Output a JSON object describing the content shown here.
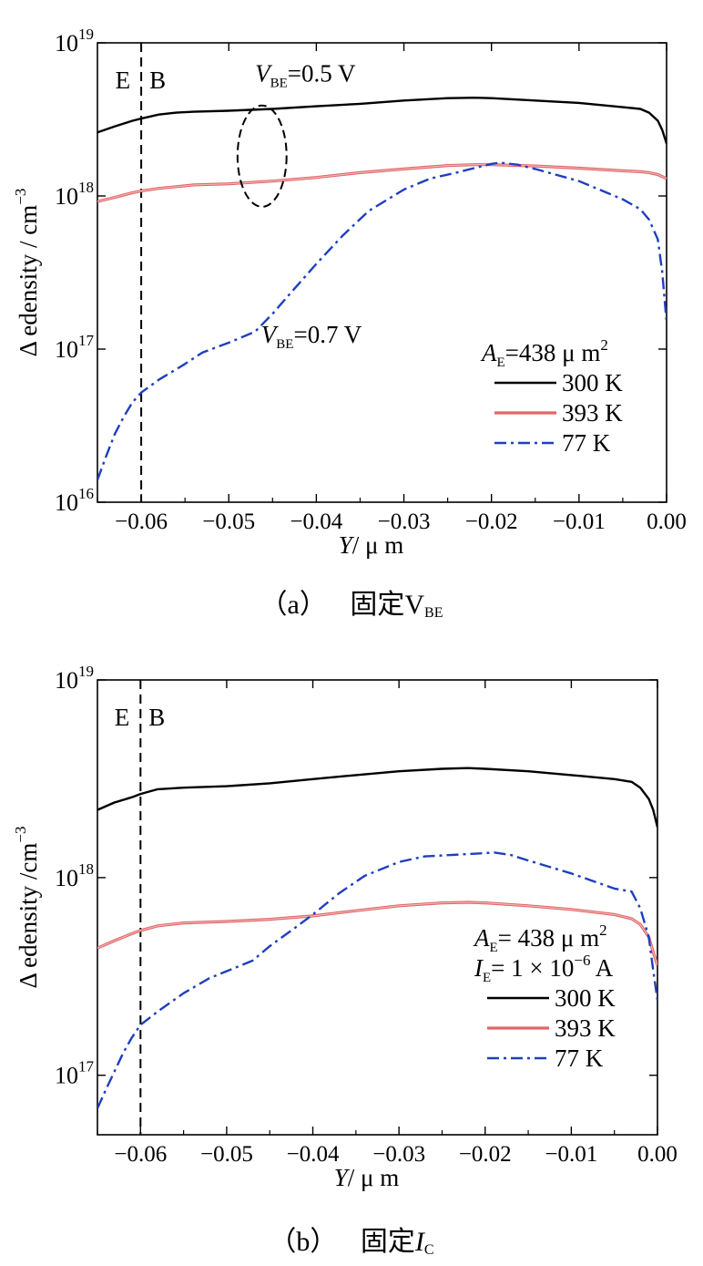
{
  "chart_data": [
    {
      "id": "a",
      "type": "line",
      "yscale": "log",
      "xlim": [
        -0.065,
        0.0
      ],
      "ylim": [
        1e+16,
        1e+19
      ],
      "xticks": [
        -0.06,
        -0.05,
        -0.04,
        -0.03,
        -0.02,
        -0.01,
        0.0
      ],
      "xtick_labels": [
        "−0.06",
        "−0.05",
        "−0.04",
        "−0.03",
        "−0.02",
        "−0.01",
        "0.00"
      ],
      "yticks": [
        1e+16,
        1e+17,
        1e+18,
        1e+19
      ],
      "ytick_labels": [
        {
          "base": "10",
          "exp": "16"
        },
        {
          "base": "10",
          "exp": "17"
        },
        {
          "base": "10",
          "exp": "18"
        },
        {
          "base": "10",
          "exp": "19"
        }
      ],
      "xlabel": {
        "italic": "Y",
        "rest": "/ μ m"
      },
      "ylabel": {
        "main": "Δ edensity / cm",
        "exp": "−3"
      },
      "grid": false,
      "legend_position": "lower-right",
      "legend_title": {
        "sym": "A",
        "sub": "E",
        "rest": "=438  μ m",
        "sup": "2"
      },
      "legend_lines": [],
      "divider_x": -0.06,
      "region_labels": [
        "E",
        "B"
      ],
      "annotations": [
        {
          "sym": "V",
          "sub": "BE",
          "rest": "=0.5 V",
          "x": -0.047,
          "y": 5.6e+18
        },
        {
          "sym": "V",
          "sub": "BE",
          "rest": "=0.7 V",
          "x": -0.0463,
          "y": 1.1e+17
        }
      ],
      "ellipse": {
        "cx": -0.0462,
        "cy": 1.8e+18,
        "rx": 0.0028,
        "ylo": 8.5e+17,
        "yhi": 3.9e+18
      },
      "series": [
        {
          "name": "300  K",
          "color": "#000000",
          "style": "solid",
          "x": [
            -0.065,
            -0.063,
            -0.061,
            -0.06,
            -0.058,
            -0.056,
            -0.054,
            -0.05,
            -0.045,
            -0.04,
            -0.035,
            -0.03,
            -0.025,
            -0.022,
            -0.02,
            -0.015,
            -0.01,
            -0.005,
            -0.003,
            -0.002,
            -0.001,
            -0.0005,
            0.0
          ],
          "y": [
            2.6e+18,
            2.85e+18,
            3.1e+18,
            3.2e+18,
            3.4e+18,
            3.5e+18,
            3.55e+18,
            3.6e+18,
            3.7e+18,
            3.85e+18,
            4e+18,
            4.2e+18,
            4.35e+18,
            4.38e+18,
            4.35e+18,
            4.2e+18,
            4.05e+18,
            3.8e+18,
            3.7e+18,
            3.5e+18,
            3.1e+18,
            2.7e+18,
            2.2e+18
          ]
        },
        {
          "name": "393  K",
          "color": "#e06666",
          "style": "solid",
          "x": [
            -0.065,
            -0.063,
            -0.061,
            -0.06,
            -0.058,
            -0.056,
            -0.054,
            -0.05,
            -0.045,
            -0.04,
            -0.035,
            -0.03,
            -0.025,
            -0.022,
            -0.02,
            -0.015,
            -0.01,
            -0.005,
            -0.003,
            -0.002,
            -0.001,
            0.0
          ],
          "y": [
            9.2e+17,
            9.8e+17,
            1.05e+18,
            1.08e+18,
            1.12e+18,
            1.15e+18,
            1.18e+18,
            1.2e+18,
            1.25e+18,
            1.32e+18,
            1.42e+18,
            1.5e+18,
            1.58e+18,
            1.6e+18,
            1.6e+18,
            1.57e+18,
            1.52e+18,
            1.46e+18,
            1.44e+18,
            1.42e+18,
            1.38e+18,
            1.3e+18
          ]
        },
        {
          "name": "77  K",
          "color": "#1f3fbf",
          "style": "dashdot",
          "x": [
            -0.065,
            -0.064,
            -0.063,
            -0.062,
            -0.061,
            -0.06,
            -0.058,
            -0.055,
            -0.053,
            -0.05,
            -0.047,
            -0.045,
            -0.043,
            -0.04,
            -0.037,
            -0.034,
            -0.03,
            -0.027,
            -0.024,
            -0.022,
            -0.02,
            -0.019,
            -0.017,
            -0.015,
            -0.01,
            -0.005,
            -0.003,
            -0.002,
            -0.001,
            -0.0005,
            0.0
          ],
          "y": [
            1.4e+16,
            2e+16,
            2.8e+16,
            3.6e+16,
            4.5e+16,
            5.2e+16,
            6.3e+16,
            8e+16,
            9.5e+16,
            1.1e+17,
            1.3e+17,
            1.7e+17,
            2.3e+17,
            3.6e+17,
            5.5e+17,
            8e+17,
            1.1e+18,
            1.3e+18,
            1.42e+18,
            1.52e+18,
            1.62e+18,
            1.65e+18,
            1.6e+18,
            1.5e+18,
            1.25e+18,
            9.5e+17,
            8.2e+17,
            7e+17,
            5.2e+17,
            3.2e+17,
            1.5e+17
          ]
        }
      ]
    },
    {
      "id": "b",
      "type": "line",
      "yscale": "log",
      "xlim": [
        -0.065,
        0.0
      ],
      "ylim": [
        5e+16,
        1e+19
      ],
      "xticks": [
        -0.06,
        -0.05,
        -0.04,
        -0.03,
        -0.02,
        -0.01,
        0.0
      ],
      "xtick_labels": [
        "−0.06",
        "−0.05",
        "−0.04",
        "−0.03",
        "−0.02",
        "−0.01",
        "0.00"
      ],
      "yticks": [
        1e+17,
        1e+18,
        1e+19
      ],
      "ytick_labels": [
        {
          "base": "10",
          "exp": "17"
        },
        {
          "base": "10",
          "exp": "18"
        },
        {
          "base": "10",
          "exp": "19"
        }
      ],
      "xlabel": {
        "italic": "Y",
        "rest": "/ μ m"
      },
      "ylabel": {
        "main": "Δ edensity /cm",
        "exp": "−3"
      },
      "grid": false,
      "legend_position": "lower-right",
      "legend_title": {
        "sym": "A",
        "sub": "E",
        "rest": "= 438  μ  m",
        "sup": "2"
      },
      "legend_lines": [
        {
          "sym": "I",
          "sub": "E",
          "rest": "= 1 × 10",
          "sup": "−6",
          "tail": " A"
        }
      ],
      "divider_x": -0.06,
      "region_labels": [
        "E",
        "B"
      ],
      "annotations": [],
      "series": [
        {
          "name": "300  K",
          "color": "#000000",
          "style": "solid",
          "x": [
            -0.065,
            -0.063,
            -0.061,
            -0.06,
            -0.058,
            -0.055,
            -0.05,
            -0.045,
            -0.04,
            -0.035,
            -0.03,
            -0.025,
            -0.022,
            -0.02,
            -0.015,
            -0.01,
            -0.005,
            -0.003,
            -0.002,
            -0.001,
            -0.0005,
            0.0
          ],
          "y": [
            2.2e+18,
            2.4e+18,
            2.55e+18,
            2.65e+18,
            2.8e+18,
            2.85e+18,
            2.9e+18,
            3e+18,
            3.15e+18,
            3.3e+18,
            3.45e+18,
            3.55e+18,
            3.58e+18,
            3.55e+18,
            3.45e+18,
            3.3e+18,
            3.15e+18,
            3.05e+18,
            2.85e+18,
            2.5e+18,
            2.2e+18,
            1.8e+18
          ]
        },
        {
          "name": "393  K",
          "color": "#e06666",
          "style": "solid",
          "x": [
            -0.065,
            -0.063,
            -0.061,
            -0.06,
            -0.058,
            -0.055,
            -0.05,
            -0.045,
            -0.04,
            -0.035,
            -0.03,
            -0.025,
            -0.022,
            -0.02,
            -0.015,
            -0.01,
            -0.005,
            -0.003,
            -0.002,
            -0.001,
            -0.0005,
            0.0
          ],
          "y": [
            4.4e+17,
            4.8e+17,
            5.2e+17,
            5.4e+17,
            5.7e+17,
            5.9e+17,
            6e+17,
            6.15e+17,
            6.4e+17,
            6.8e+17,
            7.2e+17,
            7.45e+17,
            7.5e+17,
            7.45e+17,
            7.2e+17,
            6.9e+17,
            6.5e+17,
            6.2e+17,
            5.8e+17,
            5e+17,
            4.2e+17,
            3.6e+17
          ]
        },
        {
          "name": "77  K",
          "color": "#1f3fbf",
          "style": "dashdot",
          "x": [
            -0.065,
            -0.064,
            -0.063,
            -0.062,
            -0.061,
            -0.06,
            -0.058,
            -0.055,
            -0.052,
            -0.047,
            -0.045,
            -0.042,
            -0.04,
            -0.037,
            -0.034,
            -0.03,
            -0.027,
            -0.024,
            -0.02,
            -0.019,
            -0.017,
            -0.015,
            -0.01,
            -0.005,
            -0.003,
            -0.002,
            -0.001,
            -0.0005,
            0.0
          ],
          "y": [
            6.8e+16,
            8.5e+16,
            1.05e+17,
            1.3e+17,
            1.55e+17,
            1.8e+17,
            2.1e+17,
            2.6e+17,
            3.1e+17,
            3.8e+17,
            4.5e+17,
            5.6e+17,
            6.5e+17,
            8.3e+17,
            1.02e+18,
            1.2e+18,
            1.28e+18,
            1.3e+18,
            1.33e+18,
            1.34e+18,
            1.3e+18,
            1.22e+18,
            1.05e+18,
            8.8e+17,
            8.5e+17,
            7e+17,
            5e+17,
            3.4e+17,
            2.4e+17
          ]
        }
      ]
    }
  ],
  "captions": [
    {
      "label": "（a）",
      "text": "固定",
      "sym": "V",
      "sub": "BE"
    },
    {
      "label": "（b）",
      "text": "固定",
      "sym": "I",
      "sub": "C"
    }
  ]
}
